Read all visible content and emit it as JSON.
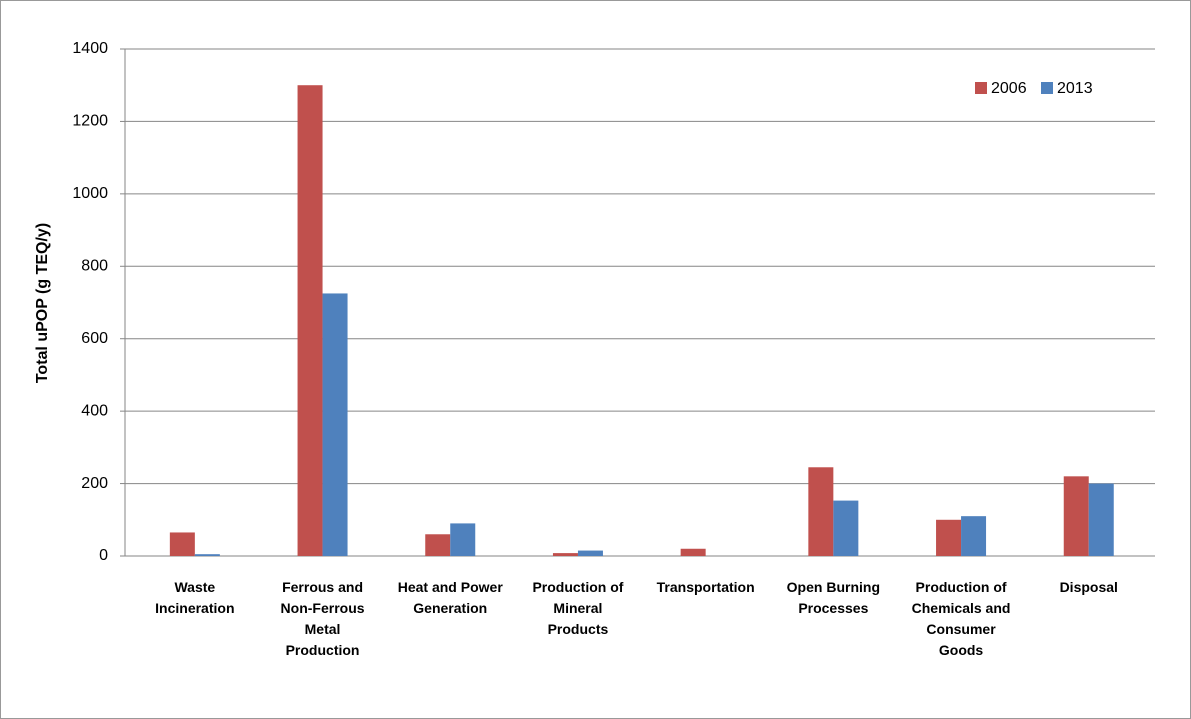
{
  "chart_data": {
    "type": "bar",
    "y_label": "Total uPOP (g TEQ/y)",
    "categories": [
      "Waste\nIncineration",
      "Ferrous and\nNon-Ferrous\nMetal\nProduction",
      "Heat and Power\nGeneration",
      "Production of\nMineral\nProducts",
      "Transportation",
      "Open Burning\nProcesses",
      "Production of\nChemicals and\nConsumer\nGoods",
      "Disposal"
    ],
    "series": [
      {
        "name": "2006",
        "color": "#c0504d",
        "values": [
          65,
          1300,
          60,
          8,
          20,
          245,
          100,
          220
        ]
      },
      {
        "name": "2013",
        "color": "#4f81bd",
        "values": [
          5,
          725,
          90,
          15,
          0,
          153,
          110,
          200
        ]
      }
    ],
    "ylim": [
      0,
      1400
    ],
    "yticks": [
      0,
      200,
      400,
      600,
      800,
      1000,
      1200,
      1400
    ],
    "grid": true,
    "legend": "top-right"
  }
}
